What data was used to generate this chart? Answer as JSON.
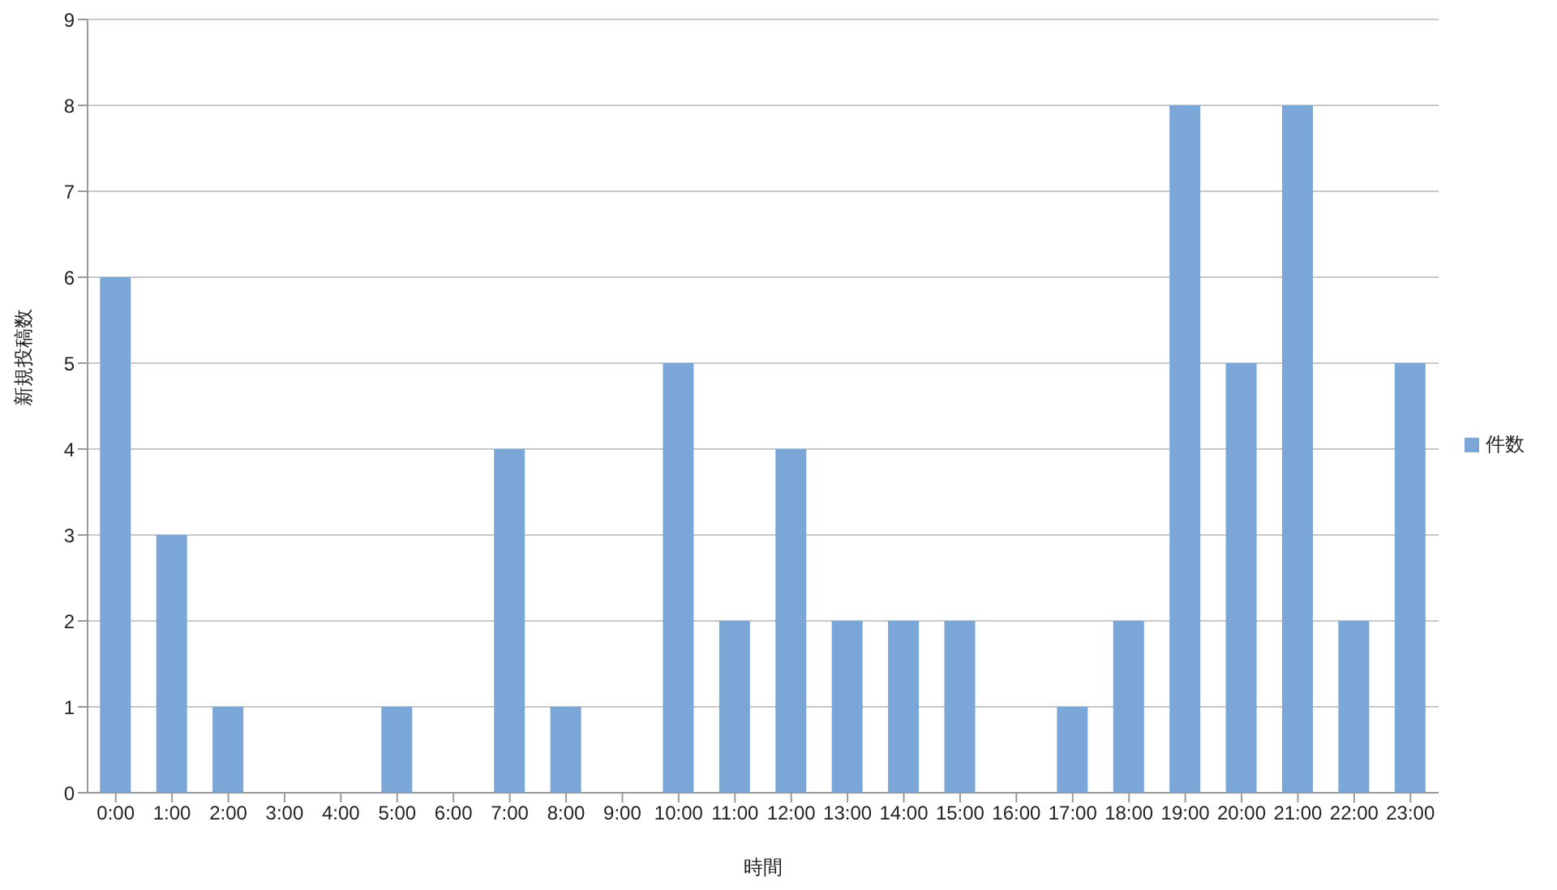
{
  "chart_data": {
    "type": "bar",
    "xlabel": "時間",
    "ylabel": "新規投稿数",
    "categories": [
      "0:00",
      "1:00",
      "2:00",
      "3:00",
      "4:00",
      "5:00",
      "6:00",
      "7:00",
      "8:00",
      "9:00",
      "10:00",
      "11:00",
      "12:00",
      "13:00",
      "14:00",
      "15:00",
      "16:00",
      "17:00",
      "18:00",
      "19:00",
      "20:00",
      "21:00",
      "22:00",
      "23:00"
    ],
    "series": [
      {
        "name": "件数",
        "color": "#7ba6d8",
        "values": [
          6,
          3,
          1,
          0,
          0,
          1,
          0,
          4,
          1,
          0,
          5,
          2,
          4,
          2,
          2,
          2,
          0,
          1,
          2,
          8,
          5,
          8,
          2,
          5
        ]
      }
    ],
    "ylim": [
      0,
      9
    ],
    "yticks": [
      0,
      1,
      2,
      3,
      4,
      5,
      6,
      7,
      8,
      9
    ],
    "grid": "y",
    "legend": "right"
  }
}
